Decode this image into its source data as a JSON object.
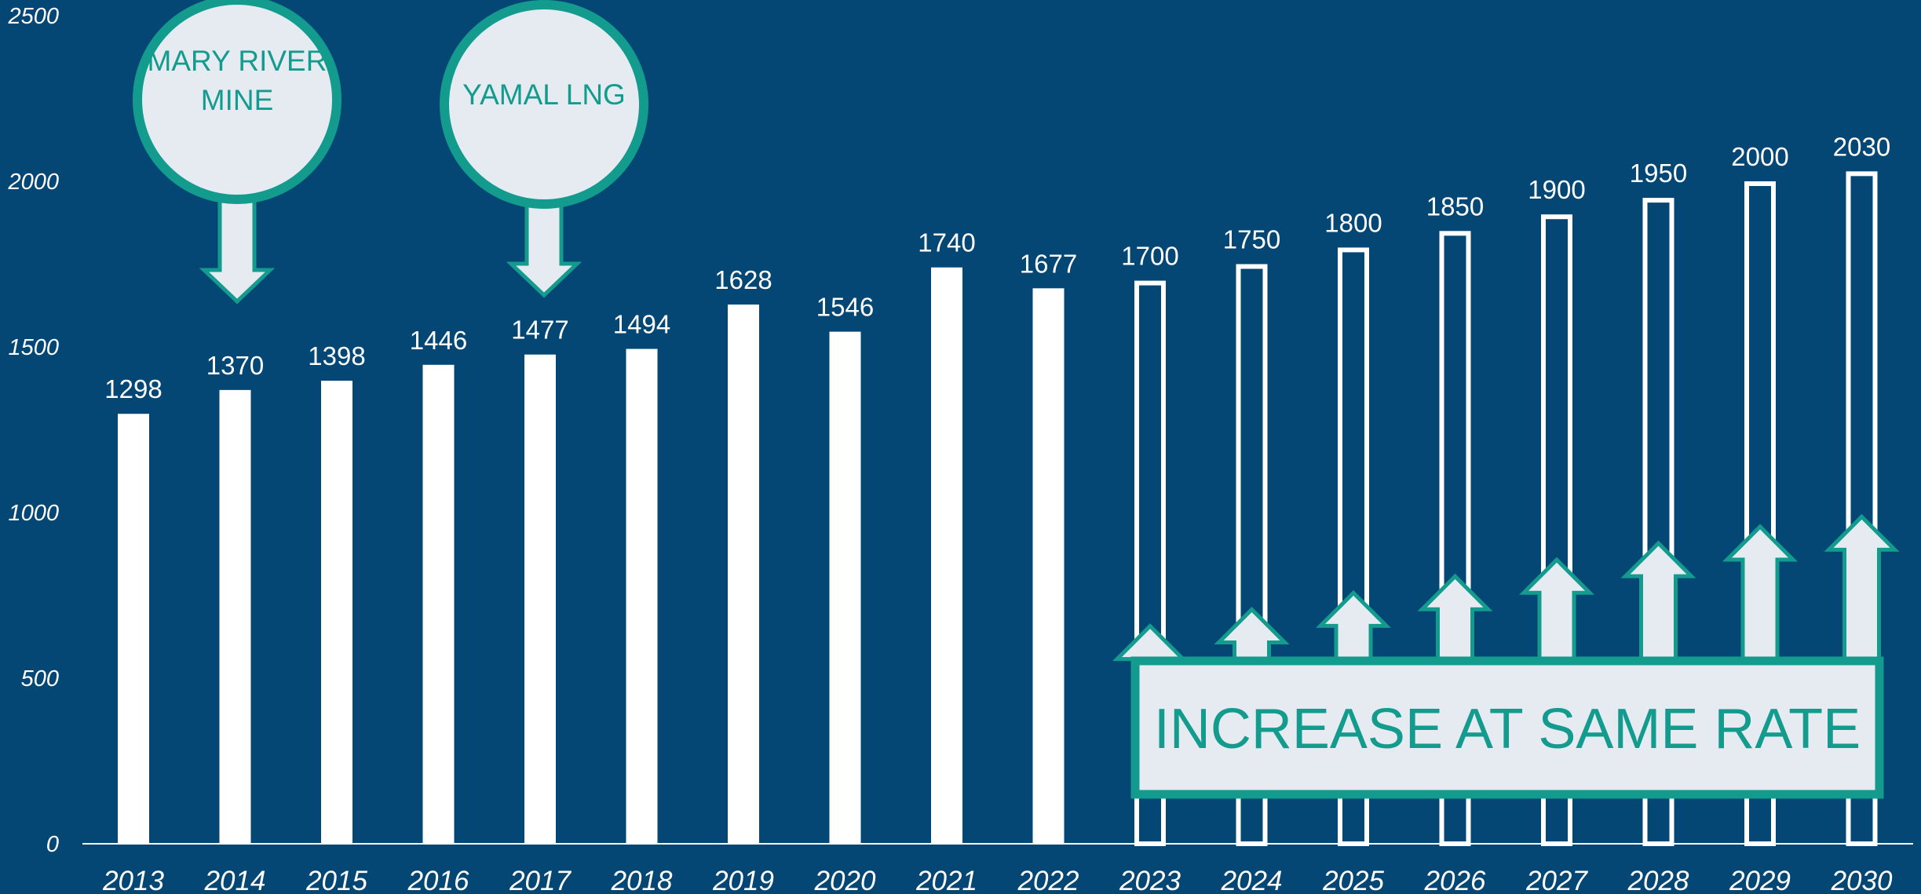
{
  "chart_data": {
    "type": "bar",
    "categories": [
      "2013",
      "2014",
      "2015",
      "2016",
      "2017",
      "2018",
      "2019",
      "2020",
      "2021",
      "2022",
      "2023",
      "2024",
      "2025",
      "2026",
      "2027",
      "2028",
      "2029",
      "2030"
    ],
    "values": [
      1298,
      1370,
      1398,
      1446,
      1477,
      1494,
      1628,
      1546,
      1740,
      1677,
      1700,
      1750,
      1800,
      1850,
      1900,
      1950,
      2000,
      2030
    ],
    "data_labels": [
      "1298",
      "1370",
      "1398",
      "1446",
      "1477",
      "1494",
      "1628",
      "1546",
      "1740",
      "1677",
      "1700",
      "1750",
      "1800",
      "1850",
      "1900",
      "1950",
      "2000",
      "2030"
    ],
    "projected_from_index": 10,
    "ylim": [
      0,
      2500
    ],
    "yticks": [
      0,
      500,
      1000,
      1500,
      2000,
      2500
    ],
    "ytick_labels": [
      "0",
      "500",
      "1000",
      "1500",
      "2000",
      "2500"
    ],
    "title": "",
    "xlabel": "",
    "ylabel": "",
    "grid": false,
    "legend": "none",
    "annotations": {
      "callouts": [
        {
          "lines": [
            "MARY RIVER",
            "MINE"
          ],
          "target_category": "2014"
        },
        {
          "lines": [
            "YAMAL LNG"
          ],
          "target_category": "2017"
        }
      ],
      "banner": "INCREASE AT SAME RATE"
    }
  },
  "colors": {
    "background": "#044775",
    "bar": "#ffffff",
    "accent": "#139b8e",
    "shape_fill": "#e6ebf2"
  }
}
